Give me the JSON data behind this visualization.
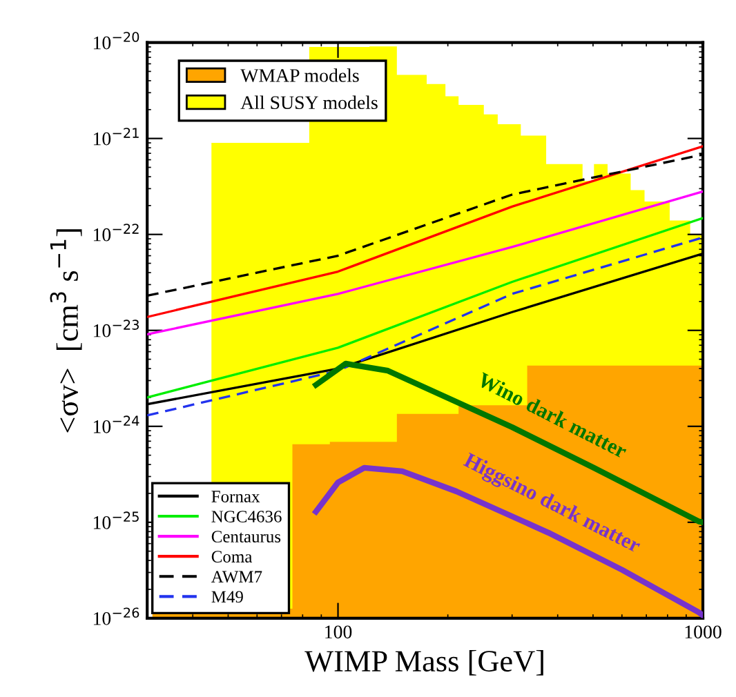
{
  "chart_data": {
    "type": "line",
    "xlabel": "WIMP Mass [GeV]",
    "ylabel": "<σv>  [cm$^{3}$ s$^{−1}$]",
    "log": "xy",
    "xlim": [
      30,
      1000
    ],
    "xticks": [
      100,
      1000
    ],
    "ylim": [
      1e-26,
      1e-20
    ],
    "yticks": [
      {
        "value": 1e-26,
        "label": "10$^{−26}$"
      },
      {
        "value": 1e-25,
        "label": "10$^{−25}$"
      },
      {
        "value": 1e-24,
        "label": "10$^{−24}$"
      },
      {
        "value": 1e-23,
        "label": "10$^{−23}$"
      },
      {
        "value": 1e-22,
        "label": "10$^{−22}$"
      },
      {
        "value": 1e-21,
        "label": "10$^{−21}$"
      },
      {
        "value": 1e-20,
        "label": "10$^{−20}$"
      }
    ],
    "legend": "left",
    "grid": false,
    "series": [
      {
        "name": "All SUSY models",
        "type": "area",
        "color": "#ffff00",
        "x": [
          45,
          83.4,
          83.4,
          122,
          122,
          145,
          145,
          175,
          175,
          197,
          197,
          214,
          214,
          251,
          251,
          274,
          274,
          317,
          317,
          372,
          372,
          468,
          468,
          503,
          503,
          548,
          548,
          634,
          634,
          692,
          692,
          811,
          811,
          923,
          923,
          1000
        ],
        "values": [
          9e-22,
          9e-22,
          9e-21,
          9e-21,
          9.1e-21,
          9.1e-21,
          4.6e-21,
          4.6e-21,
          3.7e-21,
          3.7e-21,
          2.75e-21,
          2.75e-21,
          2.24e-21,
          2.24e-21,
          1.78e-21,
          1.78e-21,
          1.41e-21,
          1.41e-21,
          1.07e-21,
          1.07e-21,
          5.4e-22,
          5.4e-22,
          3.6e-22,
          3.6e-22,
          5.4e-22,
          5.4e-22,
          4.3e-22,
          4.3e-22,
          2.9e-22,
          2.9e-22,
          2.2e-22,
          2.2e-22,
          1.4e-22,
          1.4e-22,
          1e-22,
          1e-22
        ]
      },
      {
        "name": "WMAP models",
        "type": "area",
        "color": "#ffa500",
        "x": [
          31,
          75,
          75,
          95,
          95,
          145,
          145,
          214,
          214,
          330,
          330,
          1000
        ],
        "values": [
          1.26e-26,
          1.26e-26,
          6.5e-25,
          6.5e-25,
          6.9e-25,
          6.9e-25,
          1.35e-24,
          1.35e-24,
          1.66e-24,
          1.66e-24,
          4.3e-24,
          4.3e-24
        ]
      },
      {
        "name": "Fornax",
        "color": "#000000",
        "line_style": "solid",
        "x": [
          30,
          100,
          300,
          1000
        ],
        "values": [
          1.7e-24,
          4e-24,
          1.55e-23,
          6.3e-23
        ]
      },
      {
        "name": "NGC4636",
        "color": "#00ee00",
        "line_style": "solid",
        "x": [
          30,
          100,
          300,
          1000
        ],
        "values": [
          2e-24,
          6.6e-24,
          3.2e-23,
          1.48e-22
        ]
      },
      {
        "name": "Centaurus",
        "color": "#ff00ff",
        "line_style": "solid",
        "x": [
          30,
          100,
          300,
          1000
        ],
        "values": [
          9.1e-24,
          2.4e-23,
          7.4e-23,
          2.8e-22
        ]
      },
      {
        "name": "Coma",
        "color": "#ff0000",
        "line_style": "solid",
        "x": [
          30,
          100,
          300,
          1000
        ],
        "values": [
          1.38e-23,
          4.1e-23,
          1.95e-22,
          8.3e-22
        ]
      },
      {
        "name": "AWM7",
        "color": "#000000",
        "line_style": "dashed",
        "x": [
          30,
          100,
          300,
          1000
        ],
        "values": [
          2.3e-23,
          6e-23,
          2.6e-22,
          6.8e-22
        ]
      },
      {
        "name": "M49",
        "color": "#2233ee",
        "line_style": "dashed",
        "x": [
          30,
          100,
          300,
          1000
        ],
        "values": [
          1.3e-24,
          3.8e-24,
          2.4e-23,
          9.3e-23
        ]
      },
      {
        "color": "#007700",
        "line_style": "solid",
        "x": [
          87,
          105,
          137,
          211,
          300,
          502,
          975,
          1000
        ],
        "values": [
          2.7e-24,
          4.5e-24,
          3.8e-24,
          1.8e-24,
          9.8e-25,
          3.7e-25,
          1.02e-25,
          1e-25
        ]
      },
      {
        "color": "#7733cc",
        "line_style": "solid",
        "x": [
          87,
          100,
          118,
          150,
          211,
          377,
          600,
          975,
          1000
        ],
        "values": [
          1.29e-25,
          2.6e-25,
          3.7e-25,
          3.4e-25,
          2.1e-25,
          7.8e-26,
          3.2e-26,
          1.15e-26,
          1.07e-26
        ]
      }
    ],
    "annotations": [
      "Wino dark matter",
      "Higgsino dark matter"
    ]
  }
}
